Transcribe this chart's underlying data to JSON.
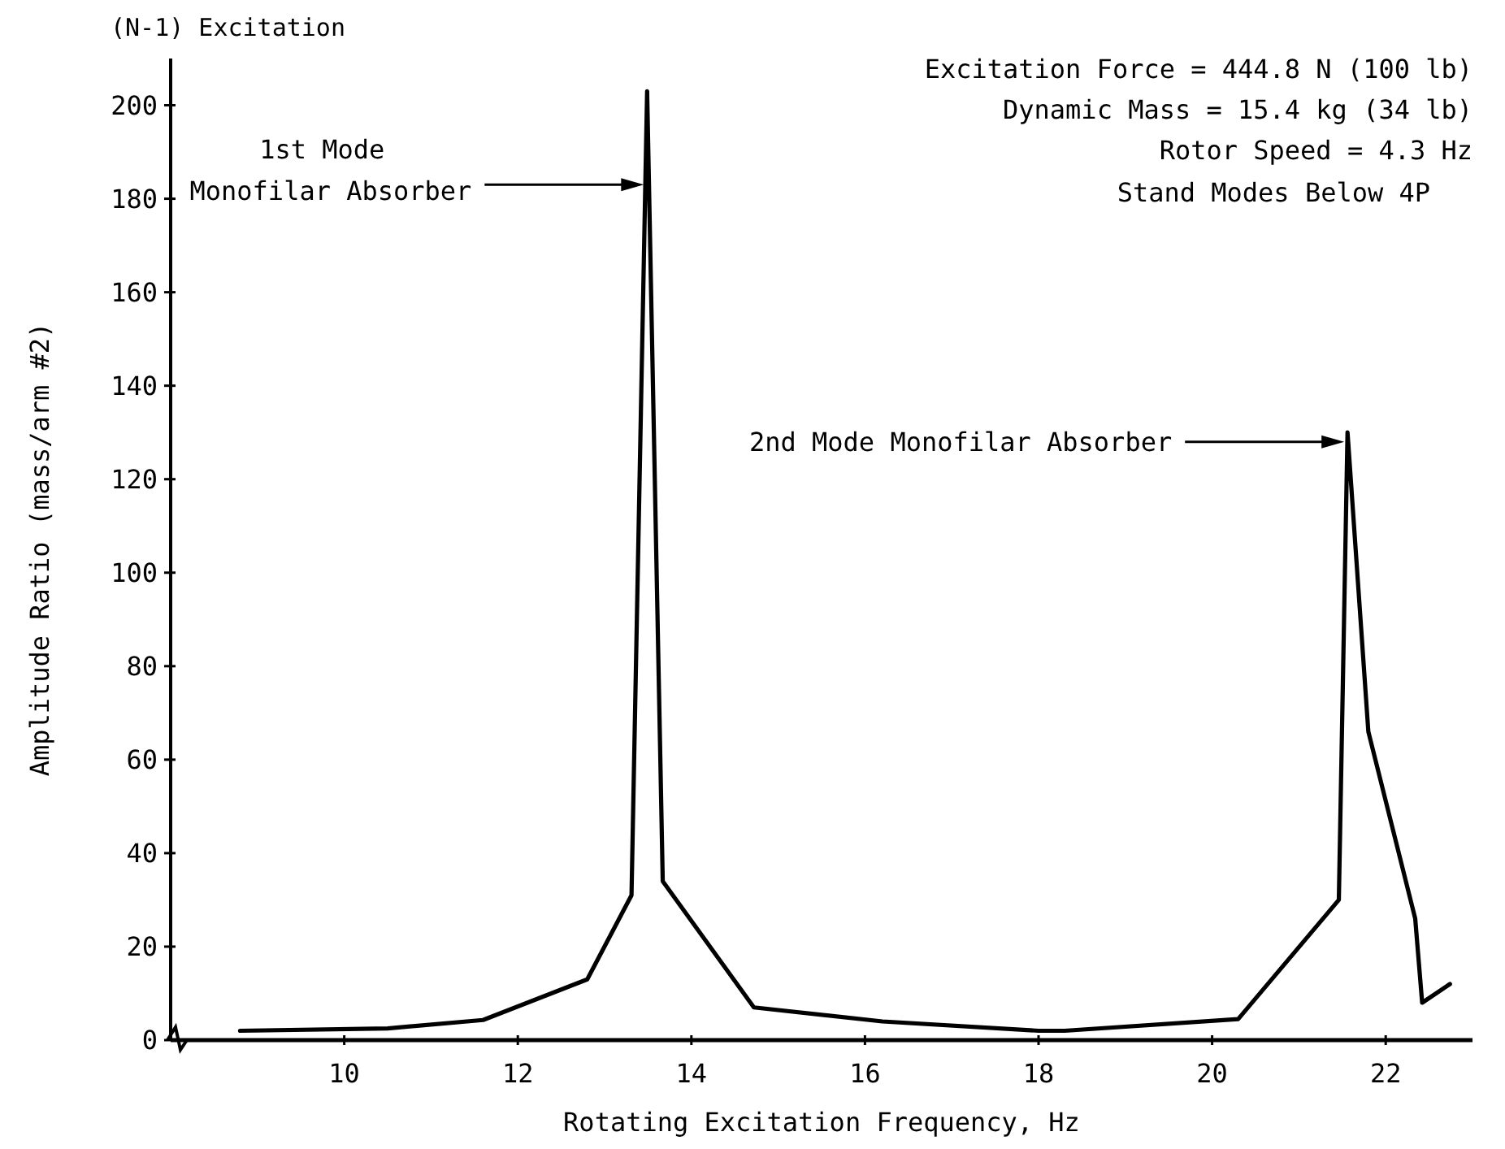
{
  "chart_data": {
    "type": "line",
    "title": "(N-1) Excitation",
    "xlabel": "Rotating Excitation Frequency, Hz",
    "ylabel": "Amplitude Ratio (mass/arm #2)",
    "x": [
      8.8,
      10.5,
      11.6,
      12.8,
      13.31,
      13.49,
      13.67,
      14.72,
      16.2,
      18.0,
      18.3,
      20.3,
      21.46,
      21.56,
      21.8,
      22.34,
      22.42,
      22.74
    ],
    "series": [
      {
        "color": "#000000",
        "values": [
          2,
          2.5,
          4.3,
          13,
          31,
          203,
          34,
          7,
          4,
          2,
          2,
          4.5,
          30,
          130,
          66,
          26,
          8,
          12
        ]
      }
    ],
    "xlim": [
      8,
      23
    ],
    "ylim": [
      0,
      210
    ],
    "xticks": [
      10,
      12,
      14,
      16,
      18,
      20,
      22
    ],
    "yticks": [
      0,
      20,
      40,
      60,
      80,
      100,
      120,
      140,
      160,
      180,
      200
    ],
    "marker": "none",
    "line_style": "solid",
    "annotations": [
      {
        "text": "1st Mode\nMonofilar Absorber",
        "x": 13.49,
        "y": 183
      },
      {
        "text": "2nd Mode Monofilar Absorber",
        "x": 21.56,
        "y": 128
      },
      "Excitation Force = 444.8 N (100 lb)",
      "Dynamic Mass = 15.4 kg (34 lb)",
      "Rotor Speed = 4.3 Hz",
      "Stand Modes Below 4P"
    ]
  }
}
